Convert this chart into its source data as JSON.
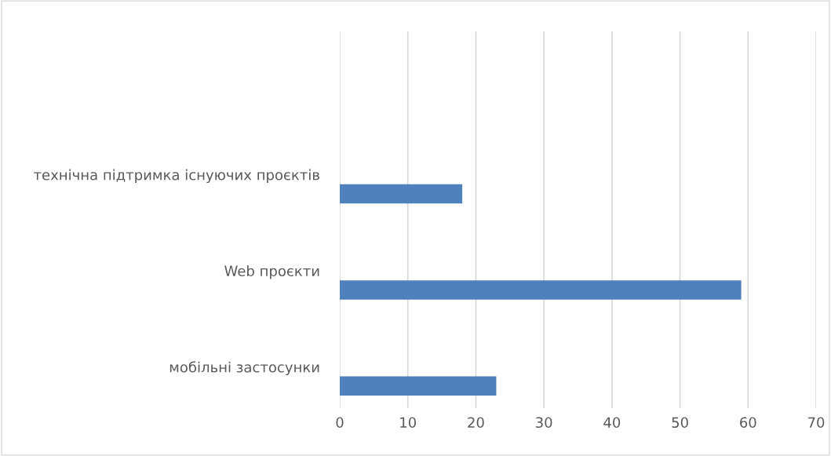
{
  "chart_data": {
    "type": "bar",
    "orientation": "horizontal",
    "categories": [
      "технічна підтримка існуючих проєктів",
      "Web проєкти",
      "мобільні застосунки"
    ],
    "values": [
      18,
      59,
      23
    ],
    "color": "#4f81bd",
    "xlim": [
      0,
      70
    ],
    "xticks": [
      0,
      10,
      20,
      30,
      40,
      50,
      60,
      70
    ],
    "grid": "x"
  }
}
